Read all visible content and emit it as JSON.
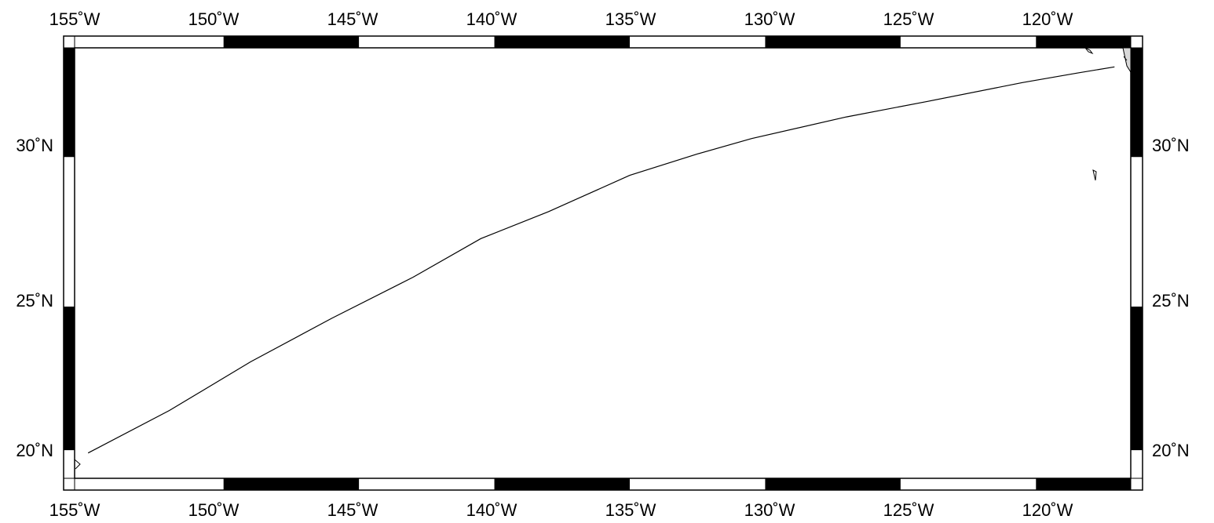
{
  "map": {
    "projection": "Mercator",
    "lon_range": [
      -155.5,
      -116.5
    ],
    "lat_range": [
      19.0,
      33.5
    ],
    "frame_style": "alternating black/white fancy frame",
    "land_color": "#d8d8d8",
    "track_color": "#000000",
    "top_tick_labels": [
      "155˚W",
      "150˚W",
      "145˚W",
      "140˚W",
      "135˚W",
      "130˚W",
      "125˚W",
      "120˚W"
    ],
    "bottom_tick_labels": [
      "155˚W",
      "150˚W",
      "145˚W",
      "140˚W",
      "135˚W",
      "130˚W",
      "125˚W",
      "120˚W"
    ],
    "left_tick_labels": [
      "30˚N",
      "25˚N",
      "20˚N"
    ],
    "right_tick_labels": [
      "30˚N",
      "25˚N",
      "20˚N"
    ],
    "track": {
      "points": [
        [
          -155.0,
          19.9
        ],
        [
          -152.0,
          21.4
        ],
        [
          -149.0,
          23.1
        ],
        [
          -146.0,
          24.6
        ],
        [
          -143.0,
          26.0
        ],
        [
          -140.5,
          27.3
        ],
        [
          -138.0,
          28.2
        ],
        [
          -135.0,
          29.4
        ],
        [
          -132.5,
          30.1
        ],
        [
          -130.5,
          30.6
        ],
        [
          -127.0,
          31.3
        ],
        [
          -124.0,
          31.8
        ],
        [
          -120.5,
          32.4
        ],
        [
          -118.5,
          32.7
        ],
        [
          -117.1,
          32.9
        ]
      ]
    }
  }
}
